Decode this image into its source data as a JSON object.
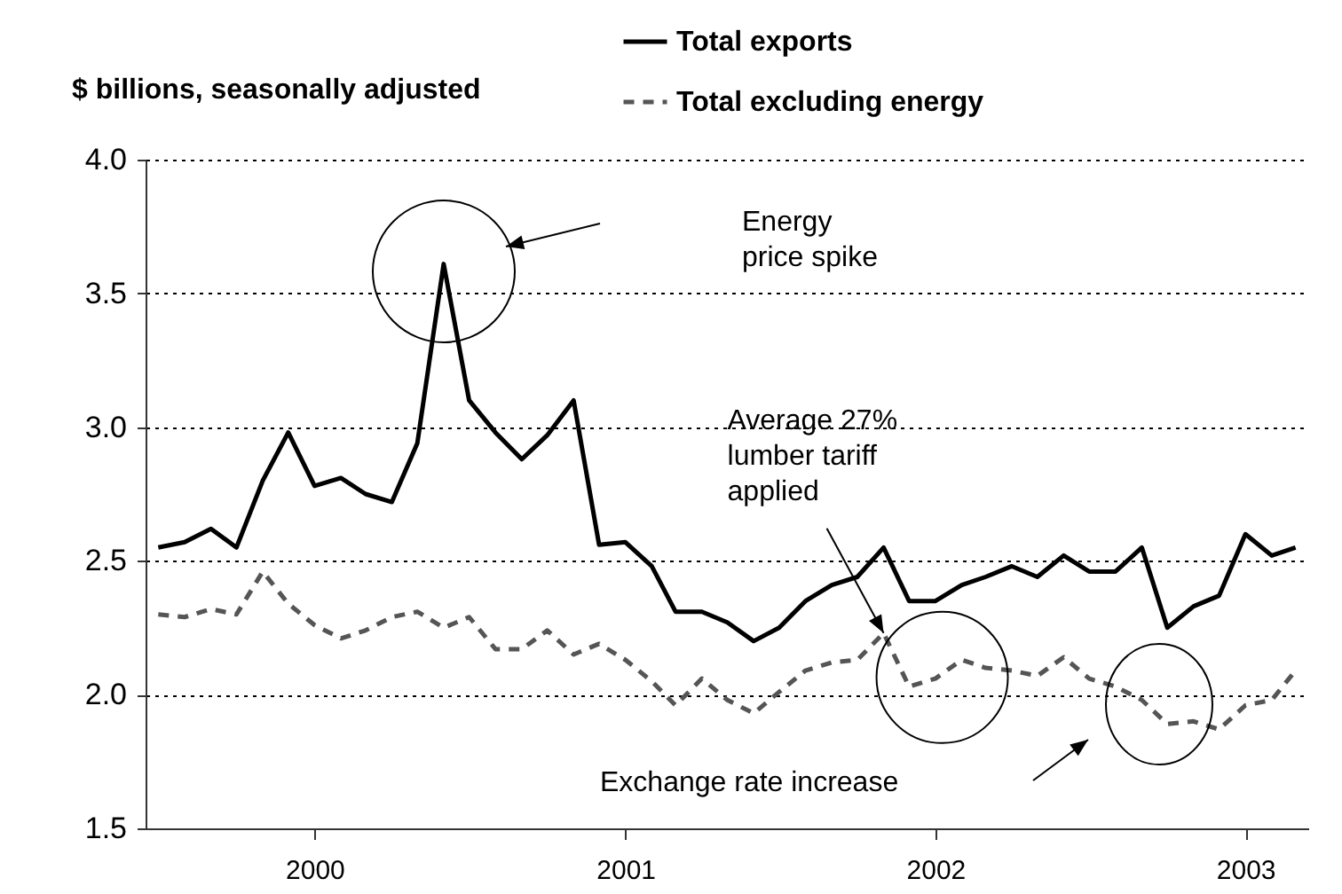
{
  "chart_data": {
    "type": "line",
    "ylabel": "$ billions, seasonally adjusted",
    "x": [
      "1999-07",
      "1999-08",
      "1999-09",
      "1999-10",
      "1999-11",
      "1999-12",
      "2000-01",
      "2000-02",
      "2000-03",
      "2000-04",
      "2000-05",
      "2000-06",
      "2000-07",
      "2000-08",
      "2000-09",
      "2000-10",
      "2000-11",
      "2000-12",
      "2001-01",
      "2001-02",
      "2001-03",
      "2001-04",
      "2001-05",
      "2001-06",
      "2001-07",
      "2001-08",
      "2001-09",
      "2001-10",
      "2001-11",
      "2001-12",
      "2002-01",
      "2002-02",
      "2002-03",
      "2002-04",
      "2002-05",
      "2002-06",
      "2002-07",
      "2002-08",
      "2002-09",
      "2002-10",
      "2002-11",
      "2002-12",
      "2003-01",
      "2003-02",
      "2003-03"
    ],
    "series": [
      {
        "name": "Total exports",
        "color": "#000000",
        "line_style": "solid",
        "values": [
          2.55,
          2.57,
          2.62,
          2.55,
          2.8,
          2.98,
          2.78,
          2.81,
          2.75,
          2.72,
          2.94,
          3.61,
          3.1,
          2.98,
          2.88,
          2.97,
          3.1,
          2.56,
          2.57,
          2.48,
          2.31,
          2.31,
          2.27,
          2.2,
          2.25,
          2.35,
          2.41,
          2.44,
          2.55,
          2.35,
          2.35,
          2.41,
          2.44,
          2.48,
          2.44,
          2.52,
          2.46,
          2.46,
          2.55,
          2.25,
          2.33,
          2.37,
          2.6,
          2.52,
          2.55
        ]
      },
      {
        "name": "Total excluding energy",
        "color": "#555555",
        "line_style": "dashed",
        "values": [
          2.3,
          2.29,
          2.32,
          2.3,
          2.46,
          2.34,
          2.26,
          2.21,
          2.24,
          2.29,
          2.31,
          2.25,
          2.29,
          2.17,
          2.17,
          2.24,
          2.15,
          2.19,
          2.13,
          2.05,
          1.96,
          2.06,
          1.98,
          1.93,
          2.01,
          2.09,
          2.12,
          2.13,
          2.23,
          2.03,
          2.06,
          2.13,
          2.1,
          2.09,
          2.07,
          2.14,
          2.06,
          2.03,
          1.98,
          1.89,
          1.9,
          1.87,
          1.96,
          1.98,
          2.09
        ]
      }
    ],
    "xlim": [
      "1999-06-16",
      "2003-03-16"
    ],
    "xticks": [
      {
        "value": "2000-01",
        "label": "2000"
      },
      {
        "value": "2001-01",
        "label": "2001"
      },
      {
        "value": "2002-01",
        "label": "2002"
      },
      {
        "value": "2003-01",
        "label": "2003"
      }
    ],
    "ylim": [
      1.5,
      4.0
    ],
    "yticks": [
      {
        "value": 1.5,
        "label": "1.5"
      },
      {
        "value": 2,
        "label": "2.0"
      },
      {
        "value": 2.5,
        "label": "2.5"
      },
      {
        "value": 3,
        "label": "3.0"
      },
      {
        "value": 3.5,
        "label": "3.5"
      },
      {
        "value": 4,
        "label": "4.0"
      }
    ],
    "grid": "y",
    "legend": "top right",
    "marker": "none",
    "annotations": [
      "Energy\nprice spike",
      {
        "text": "Average 27%\nlumber tariff\napplied",
        "x": "2001-11",
        "y": 2.23
      },
      "Exchange rate increase"
    ]
  }
}
